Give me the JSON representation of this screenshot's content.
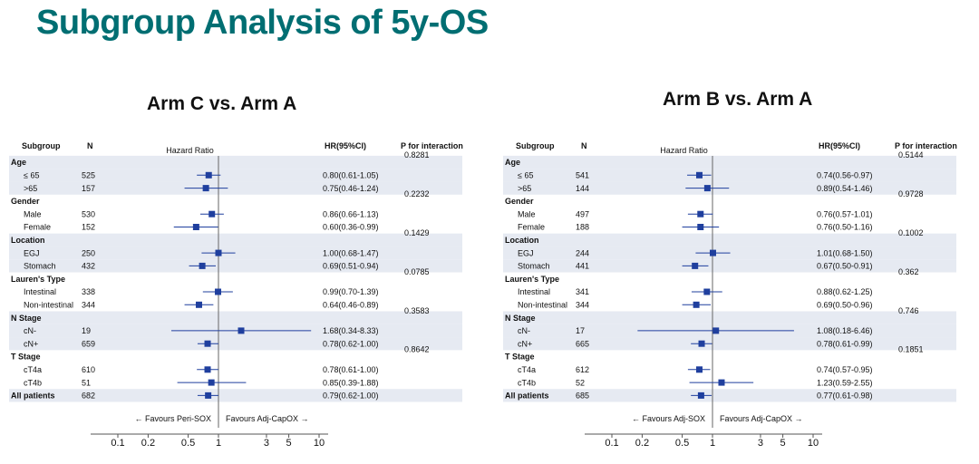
{
  "slide_title": "Subgroup Analysis of 5y-OS",
  "headers": {
    "subgroup": "Subgroup",
    "n": "N",
    "hazard_ratio": "Hazard Ratio",
    "hr_ci": "HR(95%CI)",
    "p_interaction": "P  for  interaction"
  },
  "colors": {
    "title": "#006e72",
    "marker": "#1f3f9e",
    "band": "#e6eaf2"
  },
  "chart_data": [
    {
      "type": "forest",
      "title": "Arm C vs. Arm A",
      "x_scale": "log",
      "xlim": [
        0.1,
        10
      ],
      "ticks": [
        "0.1",
        "0.2",
        "0.5",
        "1",
        "3",
        "5",
        "10"
      ],
      "favours_left": "← Favours Peri-SOX",
      "favours_right": "Favours Adj-CapOX →",
      "rows": [
        {
          "type": "group",
          "label": "Age",
          "p": "0.8281"
        },
        {
          "type": "sub",
          "label": "≤ 65",
          "n": "525",
          "hr": 0.8,
          "lo": 0.61,
          "hi": 1.05,
          "ci": "0.80(0.61-1.05)"
        },
        {
          "type": "sub",
          "label": ">65",
          "n": "157",
          "hr": 0.75,
          "lo": 0.46,
          "hi": 1.24,
          "ci": "0.75(0.46-1.24)"
        },
        {
          "type": "group",
          "label": "Gender",
          "p": "0.2232"
        },
        {
          "type": "sub",
          "label": "Male",
          "n": "530",
          "hr": 0.86,
          "lo": 0.66,
          "hi": 1.13,
          "ci": "0.86(0.66-1.13)"
        },
        {
          "type": "sub",
          "label": "Female",
          "n": "152",
          "hr": 0.6,
          "lo": 0.36,
          "hi": 0.99,
          "ci": "0.60(0.36-0.99)"
        },
        {
          "type": "group",
          "label": "Location",
          "p": "0.1429"
        },
        {
          "type": "sub",
          "label": "EGJ",
          "n": "250",
          "hr": 1.0,
          "lo": 0.68,
          "hi": 1.47,
          "ci": "1.00(0.68-1.47)"
        },
        {
          "type": "sub",
          "label": "Stomach",
          "n": "432",
          "hr": 0.69,
          "lo": 0.51,
          "hi": 0.94,
          "ci": "0.69(0.51-0.94)"
        },
        {
          "type": "group",
          "label": "Lauren's Type",
          "p": "0.0785"
        },
        {
          "type": "sub",
          "label": "Intestinal",
          "n": "338",
          "hr": 0.99,
          "lo": 0.7,
          "hi": 1.39,
          "ci": "0.99(0.70-1.39)"
        },
        {
          "type": "sub",
          "label": "Non-intestinal",
          "n": "344",
          "hr": 0.64,
          "lo": 0.46,
          "hi": 0.89,
          "ci": "0.64(0.46-0.89)"
        },
        {
          "type": "group",
          "label": "N Stage",
          "p": "0.3583"
        },
        {
          "type": "sub",
          "label": "cN-",
          "n": "19",
          "hr": 1.68,
          "lo": 0.34,
          "hi": 8.33,
          "ci": "1.68(0.34-8.33)"
        },
        {
          "type": "sub",
          "label": "cN+",
          "n": "659",
          "hr": 0.78,
          "lo": 0.62,
          "hi": 1.0,
          "ci": "0.78(0.62-1.00)"
        },
        {
          "type": "group",
          "label": "T Stage",
          "p": "0.8642"
        },
        {
          "type": "sub",
          "label": "cT4a",
          "n": "610",
          "hr": 0.78,
          "lo": 0.61,
          "hi": 1.0,
          "ci": "0.78(0.61-1.00)"
        },
        {
          "type": "sub",
          "label": "cT4b",
          "n": "51",
          "hr": 0.85,
          "lo": 0.39,
          "hi": 1.88,
          "ci": "0.85(0.39-1.88)"
        },
        {
          "type": "total",
          "label": "All patients",
          "n": "682",
          "hr": 0.79,
          "lo": 0.62,
          "hi": 1.0,
          "ci": "0.79(0.62-1.00)"
        }
      ]
    },
    {
      "type": "forest",
      "title": "Arm B vs. Arm A",
      "x_scale": "log",
      "xlim": [
        0.1,
        10
      ],
      "ticks": [
        "0.1",
        "0.2",
        "0.5",
        "1",
        "3",
        "5",
        "10"
      ],
      "favours_left": "← Favours Adj-SOX",
      "favours_right": "Favours Adj-CapOX →",
      "rows": [
        {
          "type": "group",
          "label": "Age",
          "p": "0.5144"
        },
        {
          "type": "sub",
          "label": "≤ 65",
          "n": "541",
          "hr": 0.74,
          "lo": 0.56,
          "hi": 0.97,
          "ci": "0.74(0.56-0.97)"
        },
        {
          "type": "sub",
          "label": ">65",
          "n": "144",
          "hr": 0.89,
          "lo": 0.54,
          "hi": 1.46,
          "ci": "0.89(0.54-1.46)"
        },
        {
          "type": "group",
          "label": "Gender",
          "p": "0.9728"
        },
        {
          "type": "sub",
          "label": "Male",
          "n": "497",
          "hr": 0.76,
          "lo": 0.57,
          "hi": 1.01,
          "ci": "0.76(0.57-1.01)"
        },
        {
          "type": "sub",
          "label": "Female",
          "n": "188",
          "hr": 0.76,
          "lo": 0.5,
          "hi": 1.16,
          "ci": "0.76(0.50-1.16)"
        },
        {
          "type": "group",
          "label": "Location",
          "p": "0.1002"
        },
        {
          "type": "sub",
          "label": "EGJ",
          "n": "244",
          "hr": 1.01,
          "lo": 0.68,
          "hi": 1.5,
          "ci": "1.01(0.68-1.50)"
        },
        {
          "type": "sub",
          "label": "Stomach",
          "n": "441",
          "hr": 0.67,
          "lo": 0.5,
          "hi": 0.91,
          "ci": "0.67(0.50-0.91)"
        },
        {
          "type": "group",
          "label": "Lauren's Type",
          "p": "0.362"
        },
        {
          "type": "sub",
          "label": "Intestinal",
          "n": "341",
          "hr": 0.88,
          "lo": 0.62,
          "hi": 1.25,
          "ci": "0.88(0.62-1.25)"
        },
        {
          "type": "sub",
          "label": "Non-intestinal",
          "n": "344",
          "hr": 0.69,
          "lo": 0.5,
          "hi": 0.96,
          "ci": "0.69(0.50-0.96)"
        },
        {
          "type": "group",
          "label": "N Stage",
          "p": "0.746"
        },
        {
          "type": "sub",
          "label": "cN-",
          "n": "17",
          "hr": 1.08,
          "lo": 0.18,
          "hi": 6.46,
          "ci": "1.08(0.18-6.46)"
        },
        {
          "type": "sub",
          "label": "cN+",
          "n": "665",
          "hr": 0.78,
          "lo": 0.61,
          "hi": 0.99,
          "ci": "0.78(0.61-0.99)"
        },
        {
          "type": "group",
          "label": "T Stage",
          "p": "0.1851"
        },
        {
          "type": "sub",
          "label": "cT4a",
          "n": "612",
          "hr": 0.74,
          "lo": 0.57,
          "hi": 0.95,
          "ci": "0.74(0.57-0.95)"
        },
        {
          "type": "sub",
          "label": "cT4b",
          "n": "52",
          "hr": 1.23,
          "lo": 0.59,
          "hi": 2.55,
          "ci": "1.23(0.59-2.55)"
        },
        {
          "type": "total",
          "label": "All patients",
          "n": "685",
          "hr": 0.77,
          "lo": 0.61,
          "hi": 0.98,
          "ci": "0.77(0.61-0.98)"
        }
      ]
    }
  ]
}
